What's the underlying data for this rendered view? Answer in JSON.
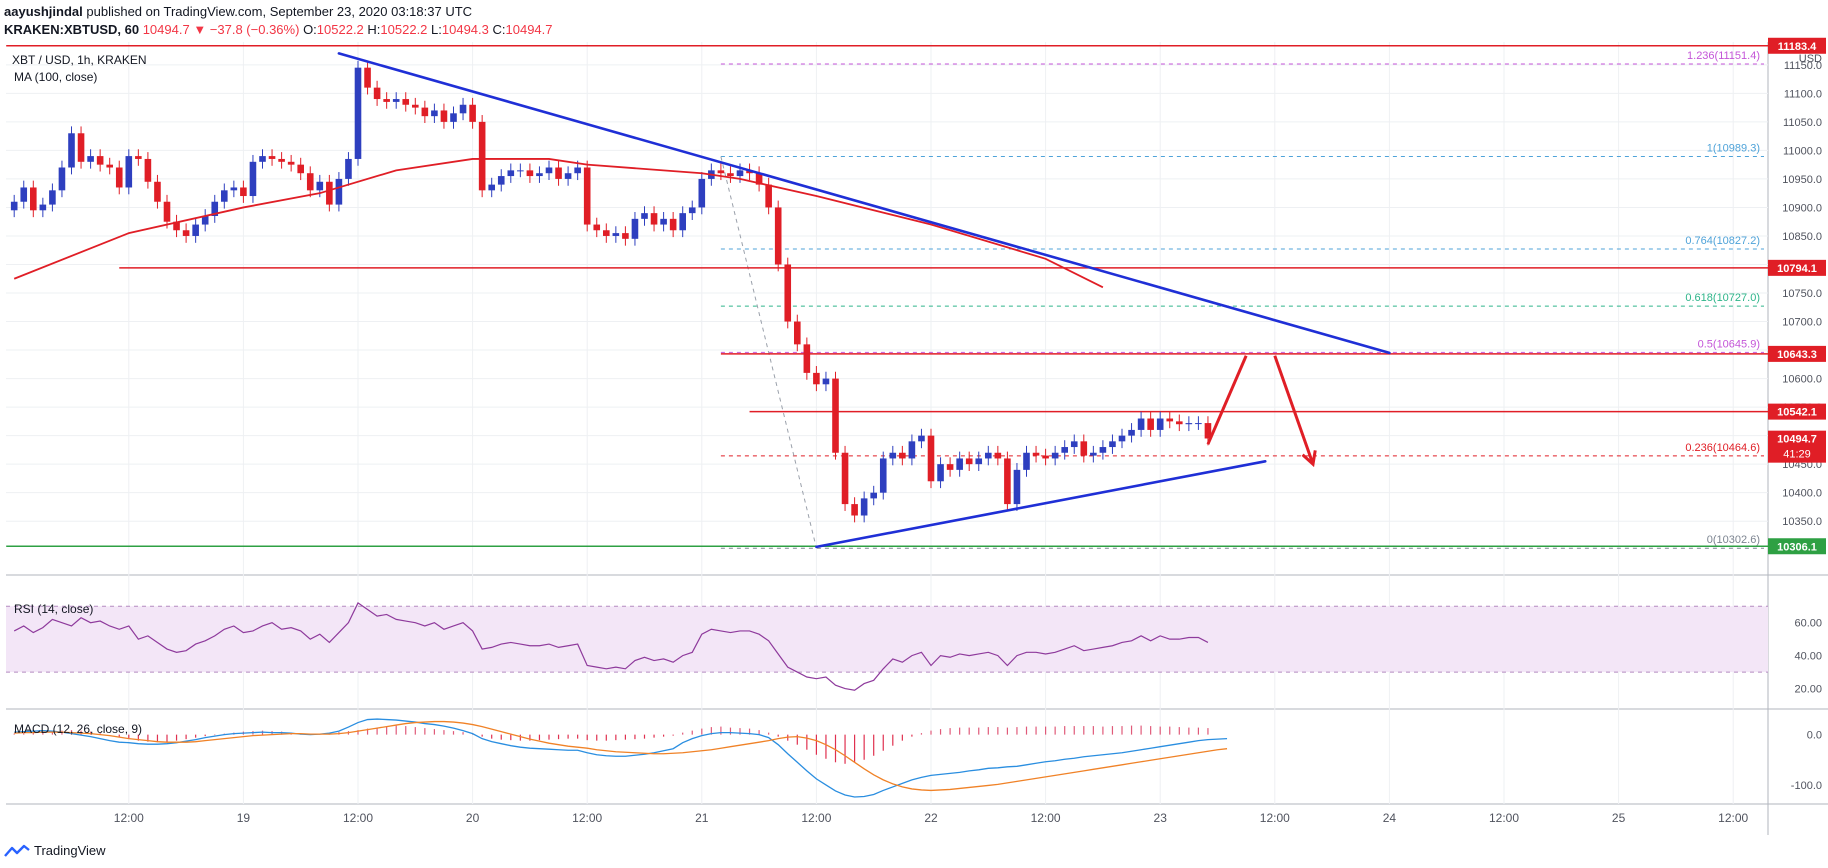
{
  "header": {
    "author": "aayushjindal",
    "published": "published on TradingView.com, September 23, 2020 03:18:37 UTC",
    "symbol": "KRAKEN:XBTUSD, 60",
    "last": "10494.7",
    "change": "▼ −37.8 (−0.36%)",
    "ohlc": {
      "o_label": "O:",
      "o": "10522.2",
      "h_label": "H:",
      "h": "10522.2",
      "l_label": "L:",
      "l": "10494.3",
      "c_label": "C:",
      "c": "10494.7"
    }
  },
  "footer": {
    "brand": "TradingView"
  },
  "colors": {
    "bull": "#2e3fbf",
    "bear": "#e01e26",
    "ma": "#e01e26",
    "trend": "#1f2fd6",
    "support": "#2ea043",
    "fib_pink": "#c455d8",
    "fib_blue": "#4fa3d9",
    "fib_green": "#2eb58a",
    "rsi": "#8e3a9c",
    "macd": "#2a8ee0",
    "signal": "#f08227"
  },
  "chart_data": [
    {
      "type": "candlestick",
      "title": "XBT / USD, 1h, KRAKEN",
      "currency_label": "USD",
      "ma_label": "MA (100, close)",
      "ylim": [
        10282,
        11190
      ],
      "x_ticks": [
        {
          "i": 12,
          "label": "12:00"
        },
        {
          "i": 24,
          "label": "19"
        },
        {
          "i": 36,
          "label": "12:00"
        },
        {
          "i": 48,
          "label": "20"
        },
        {
          "i": 60,
          "label": "12:00"
        },
        {
          "i": 72,
          "label": "21"
        },
        {
          "i": 84,
          "label": "12:00"
        },
        {
          "i": 96,
          "label": "22"
        },
        {
          "i": 108,
          "label": "12:00"
        },
        {
          "i": 120,
          "label": "23"
        },
        {
          "i": 132,
          "label": "12:00"
        },
        {
          "i": 144,
          "label": "24"
        },
        {
          "i": 156,
          "label": "12:00"
        },
        {
          "i": 168,
          "label": "25"
        },
        {
          "i": 180,
          "label": "12:00"
        }
      ],
      "y_ticks": [
        10350,
        10400,
        10450,
        10500,
        10550,
        10600,
        10650,
        10700,
        10750,
        10800,
        10850,
        10900,
        10950,
        11000,
        11050,
        11100,
        11150
      ],
      "closes": [
        10910,
        10935,
        10895,
        10905,
        10930,
        10970,
        11030,
        10980,
        10990,
        10975,
        10970,
        10935,
        10990,
        10985,
        10945,
        10910,
        10875,
        10860,
        10850,
        10870,
        10885,
        10910,
        10930,
        10935,
        10920,
        10980,
        10990,
        10985,
        10980,
        10975,
        10960,
        10930,
        10945,
        10905,
        10950,
        10985,
        11145,
        11110,
        11090,
        11085,
        11090,
        11080,
        11075,
        11060,
        11070,
        11050,
        11065,
        11080,
        11050,
        10930,
        10940,
        10955,
        10965,
        10965,
        10955,
        10960,
        10970,
        10950,
        10960,
        10970,
        10870,
        10860,
        10850,
        10855,
        10845,
        10880,
        10890,
        10870,
        10880,
        10860,
        10890,
        10900,
        10950,
        10965,
        10960,
        10955,
        10965,
        10960,
        10940,
        10900,
        10800,
        10700,
        10660,
        10610,
        10590,
        10600,
        10470,
        10380,
        10360,
        10390,
        10400,
        10460,
        10470,
        10460,
        10490,
        10500,
        10420,
        10450,
        10440,
        10460,
        10450,
        10460,
        10470,
        10460,
        10380,
        10440,
        10470,
        10465,
        10460,
        10470,
        10480,
        10490,
        10465,
        10470,
        10480,
        10490,
        10500,
        10510,
        10530,
        10510,
        10530,
        10525,
        10520,
        10522,
        10522,
        10495
      ],
      "ma100": [
        {
          "i": 0,
          "v": 10775
        },
        {
          "i": 12,
          "v": 10855
        },
        {
          "i": 24,
          "v": 10900
        },
        {
          "i": 32,
          "v": 10925
        },
        {
          "i": 40,
          "v": 10965
        },
        {
          "i": 48,
          "v": 10985
        },
        {
          "i": 56,
          "v": 10985
        },
        {
          "i": 60,
          "v": 10975
        },
        {
          "i": 72,
          "v": 10960
        },
        {
          "i": 76,
          "v": 10950
        },
        {
          "i": 84,
          "v": 10920
        },
        {
          "i": 96,
          "v": 10870
        },
        {
          "i": 108,
          "v": 10810
        },
        {
          "i": 114,
          "v": 10760
        }
      ],
      "levels": [
        {
          "name": "resistance-11183",
          "value": 11183.4,
          "i0": 0,
          "i1": "end",
          "label": "11183.4",
          "style": "solid-red"
        },
        {
          "name": "resistance-10794",
          "value": 10794.1,
          "i0": 11,
          "i1": "end",
          "label": "10794.1",
          "style": "solid-red"
        },
        {
          "name": "resistance-10643",
          "value": 10643.3,
          "i0": 74,
          "i1": "end",
          "label": "10643.3",
          "style": "solid-red"
        },
        {
          "name": "resistance-10542",
          "value": 10542.1,
          "i0": 77,
          "i1": "end",
          "label": "10542.1",
          "style": "solid-red"
        },
        {
          "name": "support-10306",
          "value": 10306.1,
          "i0": 0,
          "i1": "end",
          "label": "10306.1",
          "style": "solid-green"
        }
      ],
      "fib_levels": [
        {
          "ratio": "1.236",
          "value": 11151.4,
          "label": "1.236(11151.4)",
          "color": "fib_pink"
        },
        {
          "ratio": "1",
          "value": 10989.3,
          "label": "1(10989.3)",
          "color": "fib_blue"
        },
        {
          "ratio": "0.764",
          "value": 10827.2,
          "label": "0.764(10827.2)",
          "color": "fib_blue"
        },
        {
          "ratio": "0.618",
          "value": 10727.0,
          "label": "0.618(10727.0)",
          "color": "fib_green"
        },
        {
          "ratio": "0.5",
          "value": 10645.9,
          "label": "0.5(10645.9)",
          "color": "fib_pink"
        },
        {
          "ratio": "0.236",
          "value": 10464.6,
          "label": "0.236(10464.6)",
          "color": "fib_red"
        },
        {
          "ratio": "0",
          "value": 10302.6,
          "label": "0(10302.6)",
          "color": "fib_grey"
        }
      ],
      "fib_range": {
        "i0": 74,
        "i1": "end"
      },
      "trendlines": [
        {
          "name": "bearish-trend-line",
          "from": {
            "i": 34,
            "v": 11170
          },
          "to": {
            "i": 144,
            "v": 10645
          }
        },
        {
          "name": "bullish-support-line",
          "from": {
            "i": 84,
            "v": 10305
          },
          "to": {
            "i": 131,
            "v": 10455
          }
        }
      ],
      "fib_swing": {
        "from": {
          "i": 74,
          "v": 10989
        },
        "to": {
          "i": 84,
          "v": 10303
        }
      },
      "arrows": [
        {
          "from": {
            "i": 125,
            "v": 10485
          },
          "to": {
            "i": 129,
            "v": 10640
          }
        },
        {
          "from": {
            "i": 132,
            "v": 10640
          },
          "to": {
            "i": 136,
            "v": 10450
          }
        }
      ],
      "price_tags": [
        {
          "value": 10494.7,
          "label": "10494.7",
          "sub": "41:29"
        }
      ]
    },
    {
      "type": "line",
      "title": "RSI (14, close)",
      "ylim": [
        10,
        75
      ],
      "y_ticks": [
        20,
        40,
        60
      ],
      "band": [
        30,
        70
      ],
      "series": [
        {
          "values": [
            55,
            58,
            54,
            57,
            62,
            60,
            58,
            63,
            60,
            61,
            58,
            56,
            58,
            50,
            52,
            48,
            44,
            42,
            43,
            47,
            49,
            52,
            56,
            58,
            54,
            55,
            58,
            60,
            56,
            57,
            55,
            50,
            53,
            48,
            54,
            60,
            72,
            68,
            64,
            65,
            62,
            61,
            60,
            58,
            60,
            56,
            58,
            60,
            55,
            44,
            45,
            47,
            48,
            47,
            46,
            46,
            47,
            45,
            46,
            47,
            34,
            33,
            32,
            33,
            32,
            37,
            39,
            37,
            38,
            36,
            40,
            42,
            53,
            56,
            55,
            54,
            55,
            55,
            53,
            49,
            41,
            33,
            30,
            27,
            26,
            27,
            22,
            20,
            19,
            23,
            25,
            32,
            38,
            36,
            40,
            42,
            34,
            40,
            39,
            41,
            40,
            41,
            42,
            40,
            34,
            40,
            42,
            42,
            41,
            42,
            44,
            46,
            43,
            44,
            45,
            46,
            48,
            49,
            52,
            49,
            52,
            50,
            50,
            51,
            51,
            48
          ]
        }
      ]
    },
    {
      "type": "bar",
      "title": "MACD (12, 26, close, 9)",
      "ylim": [
        -130,
        45
      ],
      "y_ticks": [
        0,
        -100
      ],
      "series": [
        {
          "name": "histogram",
          "values": [
            2,
            3,
            4,
            5,
            6,
            8,
            9,
            8,
            6,
            3,
            0,
            -4,
            -8,
            -12,
            -14,
            -15,
            -14,
            -12,
            -9,
            -6,
            -3,
            -1,
            2,
            4,
            6,
            7,
            8,
            7,
            6,
            4,
            2,
            0,
            1,
            3,
            5,
            7,
            9,
            12,
            14,
            16,
            18,
            17,
            15,
            13,
            11,
            9,
            7,
            5,
            2,
            -4,
            -8,
            -10,
            -11,
            -12,
            -12,
            -11,
            -10,
            -9,
            -8,
            -8,
            -11,
            -12,
            -12,
            -11,
            -10,
            -9,
            -8,
            -6,
            -4,
            -2,
            4,
            8,
            12,
            15,
            16,
            14,
            13,
            12,
            9,
            4,
            -4,
            -12,
            -20,
            -30,
            -40,
            -48,
            -55,
            -58,
            -55,
            -50,
            -42,
            -32,
            -22,
            -12,
            -4,
            3,
            8,
            11,
            13,
            14,
            14,
            14,
            15,
            15,
            14,
            15,
            16,
            16,
            16,
            16,
            17,
            17,
            17,
            17,
            16,
            17,
            17,
            18,
            18,
            17,
            16,
            16,
            15,
            14,
            14,
            13
          ]
        },
        {
          "name": "macd",
          "values": [
            5,
            6,
            7,
            8,
            7,
            5,
            2,
            -1,
            -4,
            -8,
            -12,
            -15,
            -16,
            -18,
            -19,
            -19,
            -18,
            -16,
            -13,
            -10,
            -6,
            -3,
            0,
            2,
            3,
            4,
            5,
            4,
            4,
            3,
            1,
            0,
            1,
            3,
            7,
            15,
            24,
            30,
            31,
            30,
            29,
            27,
            25,
            22,
            20,
            17,
            13,
            8,
            2,
            -8,
            -14,
            -18,
            -22,
            -25,
            -27,
            -28,
            -29,
            -30,
            -31,
            -31,
            -36,
            -40,
            -42,
            -43,
            -43,
            -41,
            -39,
            -36,
            -32,
            -28,
            -16,
            -8,
            -2,
            2,
            4,
            4,
            3,
            2,
            0,
            -6,
            -20,
            -38,
            -55,
            -72,
            -88,
            -100,
            -112,
            -120,
            -124,
            -123,
            -119,
            -111,
            -104,
            -97,
            -90,
            -85,
            -81,
            -79,
            -77,
            -75,
            -72,
            -70,
            -67,
            -66,
            -64,
            -63,
            -60,
            -57,
            -54,
            -52,
            -49,
            -47,
            -44,
            -42,
            -40,
            -38,
            -36,
            -33,
            -30,
            -27,
            -24,
            -21,
            -18,
            -15,
            -12,
            -10,
            -9,
            -8
          ]
        },
        {
          "name": "signal",
          "values": [
            3,
            4,
            4,
            5,
            5,
            5,
            4,
            3,
            2,
            0,
            -2,
            -5,
            -8,
            -10,
            -12,
            -14,
            -15,
            -15,
            -15,
            -14,
            -12,
            -10,
            -8,
            -6,
            -4,
            -2,
            -1,
            0,
            1,
            2,
            2,
            1,
            1,
            1,
            2,
            4,
            7,
            10,
            13,
            16,
            19,
            22,
            24,
            25,
            26,
            26,
            25,
            23,
            20,
            16,
            11,
            6,
            1,
            -4,
            -9,
            -13,
            -17,
            -20,
            -23,
            -25,
            -27,
            -30,
            -32,
            -34,
            -35,
            -36,
            -37,
            -38,
            -38,
            -37,
            -36,
            -34,
            -32,
            -30,
            -27,
            -24,
            -21,
            -18,
            -15,
            -12,
            -8,
            -5,
            -4,
            -7,
            -12,
            -20,
            -30,
            -42,
            -55,
            -68,
            -80,
            -90,
            -98,
            -104,
            -108,
            -110,
            -111,
            -110,
            -109,
            -107,
            -105,
            -103,
            -101,
            -99,
            -96,
            -93,
            -90,
            -87,
            -84,
            -81,
            -78,
            -75,
            -72,
            -69,
            -66,
            -63,
            -60,
            -57,
            -54,
            -51,
            -48,
            -45,
            -42,
            -39,
            -36,
            -33,
            -30,
            -28
          ]
        }
      ]
    }
  ]
}
